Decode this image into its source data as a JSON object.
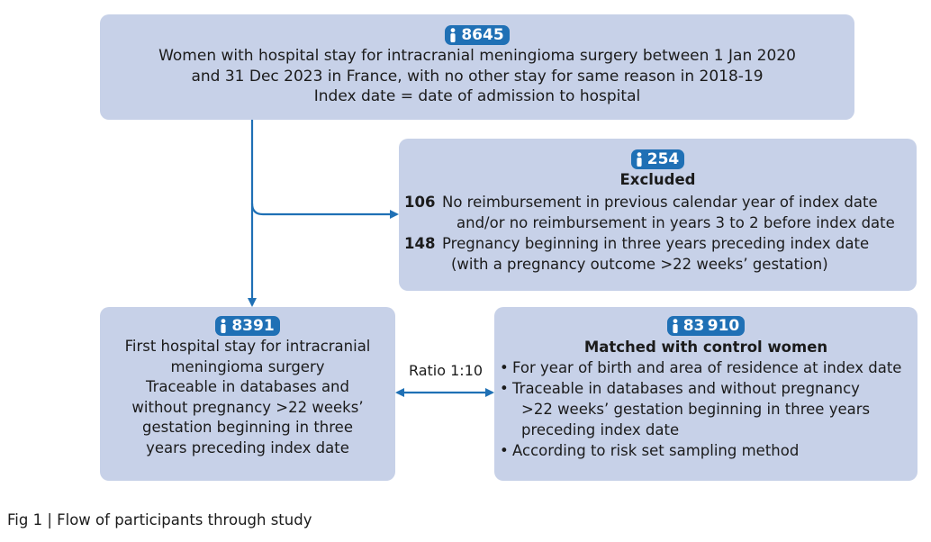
{
  "top_box": {
    "count": "8645",
    "lines": [
      "Women with hospital stay for intracranial meningioma surgery between 1 Jan 2020",
      "and 31 Dec 2023 in France, with no other stay for same reason in 2018-19",
      "Index date = date of admission to hospital"
    ]
  },
  "excluded_box": {
    "count": "254",
    "title": "Excluded",
    "items": [
      {
        "number": "106",
        "lines": [
          "No reimbursement in previous calendar year of index date",
          "and/or no reimbursement in years 3 to 2 before index date"
        ]
      },
      {
        "number": "148",
        "lines": [
          "Pregnancy beginning in three years preceding index date",
          "(with a pregnancy outcome >22 weeks’ gestation)"
        ]
      }
    ]
  },
  "left_box": {
    "count": "8391",
    "lines": [
      "First hospital stay for intracranial",
      "meningioma surgery",
      "Traceable in databases and",
      "without pregnancy >22 weeks’",
      "gestation beginning in three",
      "years preceding index date"
    ]
  },
  "right_box": {
    "count": "83 910",
    "title": "Matched with control women",
    "bullets": [
      [
        "For year of birth and area of residence at index date"
      ],
      [
        "Traceable in databases and without pregnancy",
        ">22 weeks’ gestation beginning in three years",
        "preceding index date"
      ],
      [
        "According to risk set sampling method"
      ]
    ]
  },
  "ratio_label": "Ratio 1:10",
  "caption": "Fig 1 | Flow of participants through study",
  "colors": {
    "box_fill": "#c7d1e8",
    "arrow": "#1f70b5",
    "badge": "#1f70b5"
  },
  "icons": {
    "count_badge": "person-icon"
  }
}
